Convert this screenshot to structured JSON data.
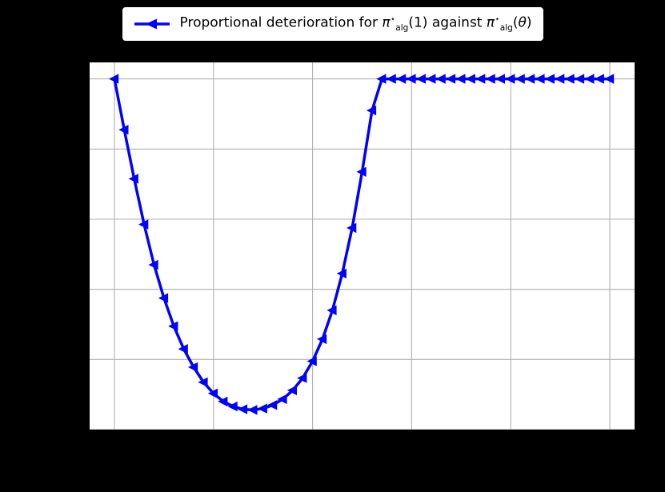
{
  "figure": {
    "background": "#000000"
  },
  "legend": {
    "marker_color": "#0000ff",
    "text": {
      "prefix": "Proportional deterioration for ",
      "pi": "π",
      "star": "⋆",
      "sub": "alg",
      "arg_one": "(1)",
      "against": " against ",
      "open_paren": "(",
      "theta": "θ",
      "close_paren": ")"
    }
  },
  "chart_data": {
    "type": "line",
    "title": "",
    "legend_label": "Proportional deterioration for π⋆_alg(1) against π⋆_alg(θ)",
    "x": [
      0.0,
      0.02,
      0.04,
      0.06,
      0.08,
      0.1,
      0.12,
      0.14,
      0.16,
      0.18,
      0.2,
      0.22,
      0.24,
      0.26,
      0.28,
      0.3,
      0.32,
      0.34,
      0.36,
      0.38,
      0.4,
      0.42,
      0.44,
      0.46,
      0.48,
      0.5,
      0.52,
      0.54,
      0.56,
      0.58,
      0.6,
      0.62,
      0.64,
      0.66,
      0.68,
      0.7,
      0.72,
      0.74,
      0.76,
      0.78,
      0.8,
      0.82,
      0.84,
      0.86,
      0.88,
      0.9,
      0.92,
      0.94,
      0.96,
      0.98,
      1.0
    ],
    "y": [
      1.0,
      0.855,
      0.715,
      0.585,
      0.47,
      0.375,
      0.295,
      0.23,
      0.178,
      0.135,
      0.103,
      0.08,
      0.066,
      0.058,
      0.056,
      0.06,
      0.07,
      0.087,
      0.112,
      0.147,
      0.195,
      0.258,
      0.34,
      0.445,
      0.575,
      0.735,
      0.91,
      1.0,
      1.0,
      1.0,
      1.0,
      1.0,
      1.0,
      1.0,
      1.0,
      1.0,
      1.0,
      1.0,
      1.0,
      1.0,
      1.0,
      1.0,
      1.0,
      1.0,
      1.0,
      1.0,
      1.0,
      1.0,
      1.0,
      1.0,
      1.0
    ],
    "xlim": [
      -0.05,
      1.05
    ],
    "ylim": [
      0.0,
      1.047
    ],
    "x_gridlines": [
      0.0,
      0.2,
      0.4,
      0.6,
      0.8,
      1.0
    ],
    "y_gridlines": [
      0.0,
      0.2,
      0.4,
      0.6,
      0.8,
      1.0
    ],
    "grid": true,
    "legend_position": "top-center-outside",
    "marker": "left-triangle",
    "line_color": "#0000ff",
    "line_width": 3.5,
    "plot_bg": "#ffffff",
    "grid_color": "#b0b0b0"
  }
}
